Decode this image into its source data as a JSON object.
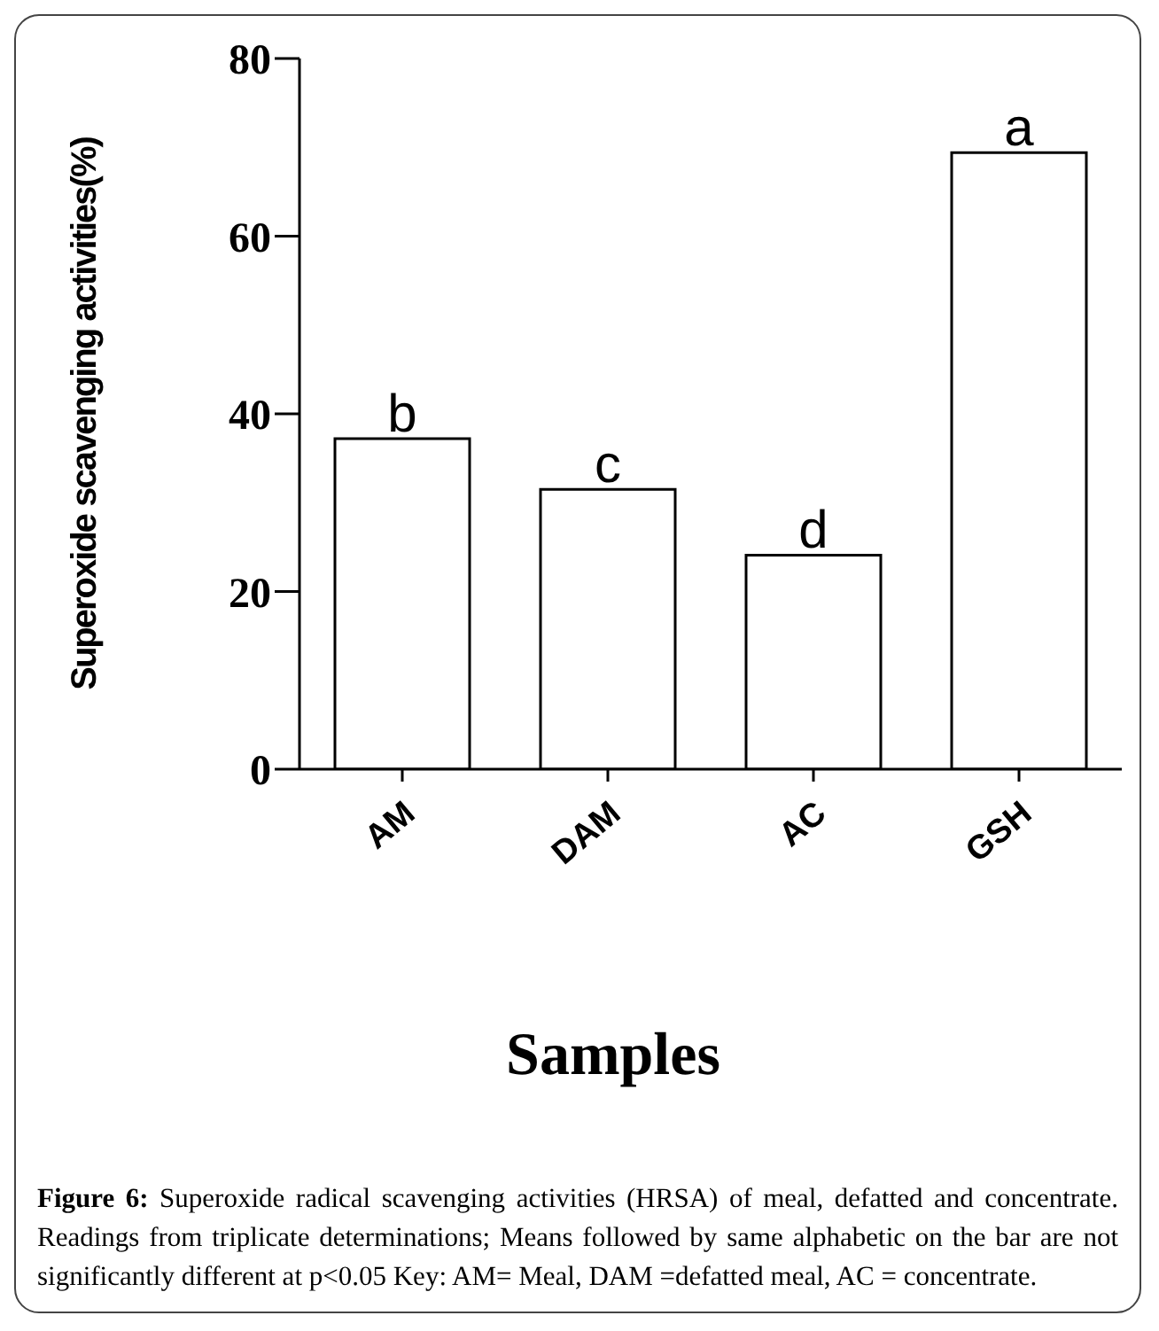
{
  "chart_data": {
    "type": "bar",
    "categories": [
      "AM",
      "DAM",
      "AC",
      "GSH"
    ],
    "values": [
      37.2,
      31.5,
      24.1,
      69.4
    ],
    "color": "#ffffff",
    "ylim": [
      0,
      80
    ],
    "yticks": [
      0,
      20,
      40,
      60,
      80
    ],
    "grid": false,
    "ylabel": "Superoxide scavenging activities(%)",
    "xlabel": "Samples",
    "annotations": [
      {
        "text": "b",
        "x": "AM",
        "y": 37.2
      },
      {
        "text": "c",
        "x": "DAM",
        "y": 31.5
      },
      {
        "text": "d",
        "x": "AC",
        "y": 24.1
      },
      {
        "text": "a",
        "x": "GSH",
        "y": 69.4
      },
      "Figure 6: Superoxide radical scavenging activities (HRSA) of meal, defatted and concentrate.  Readings from triplicate determinations; Means followed by same alphabetic on the bar are not significantly different at p<0.05 Key: AM= Meal, DAM =defatted    meal, AC = concentrate."
    ]
  }
}
